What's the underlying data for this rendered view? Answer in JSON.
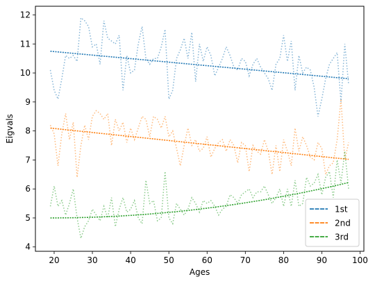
{
  "chart_data": {
    "type": "line",
    "title": "",
    "xlabel": "Ages",
    "ylabel": "Eigvals",
    "xlim": [
      15.1,
      101
    ],
    "ylim": [
      3.85,
      12.3
    ],
    "xticks": [
      20,
      30,
      40,
      50,
      60,
      70,
      80,
      90,
      100
    ],
    "yticks": [
      4,
      5,
      6,
      7,
      8,
      9,
      10,
      11,
      12
    ],
    "grid": false,
    "legend_position": "lower right",
    "legend": [
      "1st",
      "2nd",
      "3rd"
    ],
    "x": [
      19,
      20,
      21,
      22,
      23,
      24,
      25,
      26,
      27,
      28,
      29,
      30,
      31,
      32,
      33,
      34,
      35,
      36,
      37,
      38,
      39,
      40,
      41,
      42,
      43,
      44,
      45,
      46,
      47,
      48,
      49,
      50,
      51,
      52,
      53,
      54,
      55,
      56,
      57,
      58,
      59,
      60,
      61,
      62,
      63,
      64,
      65,
      66,
      67,
      68,
      69,
      70,
      71,
      72,
      73,
      74,
      75,
      76,
      77,
      78,
      79,
      80,
      81,
      82,
      83,
      84,
      85,
      86,
      87,
      88,
      89,
      90,
      91,
      92,
      93,
      94,
      95,
      96,
      97
    ],
    "series": [
      {
        "name": "1st",
        "color": "#1f77b4",
        "fit": [
          10.75,
          9.8
        ],
        "values": [
          10.1,
          9.4,
          9.1,
          9.8,
          10.6,
          10.5,
          10.6,
          10.4,
          11.9,
          11.8,
          11.6,
          10.9,
          11.0,
          10.3,
          11.8,
          11.2,
          11.1,
          11.0,
          11.3,
          9.4,
          10.6,
          10.0,
          10.1,
          11.0,
          11.6,
          10.5,
          10.3,
          10.5,
          10.5,
          10.9,
          11.5,
          9.1,
          9.4,
          10.5,
          10.8,
          11.2,
          10.5,
          11.4,
          9.7,
          11.0,
          10.4,
          10.9,
          10.6,
          9.9,
          10.2,
          10.5,
          10.9,
          10.6,
          10.2,
          10.1,
          10.5,
          10.4,
          9.9,
          10.3,
          10.5,
          10.2,
          10.0,
          9.8,
          9.4,
          10.3,
          10.5,
          11.3,
          10.4,
          11.1,
          9.4,
          10.6,
          10.0,
          10.2,
          10.1,
          9.5,
          8.5,
          9.1,
          9.8,
          10.3,
          10.5,
          10.7,
          9.0,
          11.0,
          9.6
        ]
      },
      {
        "name": "2nd",
        "color": "#ff7f0e",
        "fit": [
          8.1,
          7.02
        ],
        "values": [
          8.2,
          7.9,
          6.8,
          7.9,
          8.6,
          7.7,
          8.3,
          6.4,
          7.5,
          8.2,
          7.7,
          8.5,
          8.7,
          8.6,
          8.4,
          8.6,
          7.5,
          8.4,
          8.0,
          8.3,
          7.6,
          8.1,
          7.7,
          8.1,
          8.5,
          8.4,
          7.8,
          8.5,
          8.4,
          8.1,
          8.5,
          7.8,
          8.0,
          7.4,
          6.8,
          7.5,
          8.1,
          7.5,
          7.7,
          7.3,
          7.4,
          7.8,
          7.1,
          7.4,
          7.6,
          7.7,
          7.3,
          7.7,
          7.5,
          6.9,
          7.6,
          7.5,
          6.6,
          7.5,
          7.3,
          7.2,
          7.7,
          7.3,
          6.5,
          7.5,
          6.6,
          7.7,
          7.3,
          6.8,
          8.1,
          7.3,
          7.8,
          7.5,
          7.1,
          7.0,
          7.6,
          7.4,
          6.5,
          6.8,
          6.9,
          7.7,
          9.1,
          7.0,
          7.6
        ]
      },
      {
        "name": "3rd",
        "color": "#2ca02c",
        "fit_start": 5.0,
        "fit_end": 6.22,
        "values": [
          5.4,
          6.1,
          5.4,
          5.6,
          5.1,
          5.5,
          6.0,
          5.0,
          4.3,
          4.7,
          4.9,
          5.3,
          5.1,
          4.9,
          5.4,
          5.0,
          5.7,
          4.7,
          5.3,
          5.7,
          5.2,
          5.3,
          5.6,
          5.0,
          4.8,
          6.3,
          5.5,
          5.6,
          4.9,
          5.0,
          6.6,
          5.0,
          4.8,
          5.5,
          5.3,
          5.1,
          5.3,
          5.7,
          5.5,
          5.2,
          5.6,
          5.5,
          5.6,
          5.4,
          5.1,
          5.3,
          5.4,
          5.8,
          5.7,
          5.5,
          5.8,
          5.9,
          6.0,
          5.7,
          5.9,
          5.9,
          6.1,
          5.8,
          5.5,
          5.7,
          6.0,
          5.4,
          6.0,
          5.4,
          6.3,
          5.4,
          5.5,
          6.4,
          6.1,
          6.2,
          6.5,
          5.8,
          6.4,
          6.6,
          5.7,
          7.0,
          6.2,
          7.3,
          6.0
        ]
      }
    ]
  }
}
